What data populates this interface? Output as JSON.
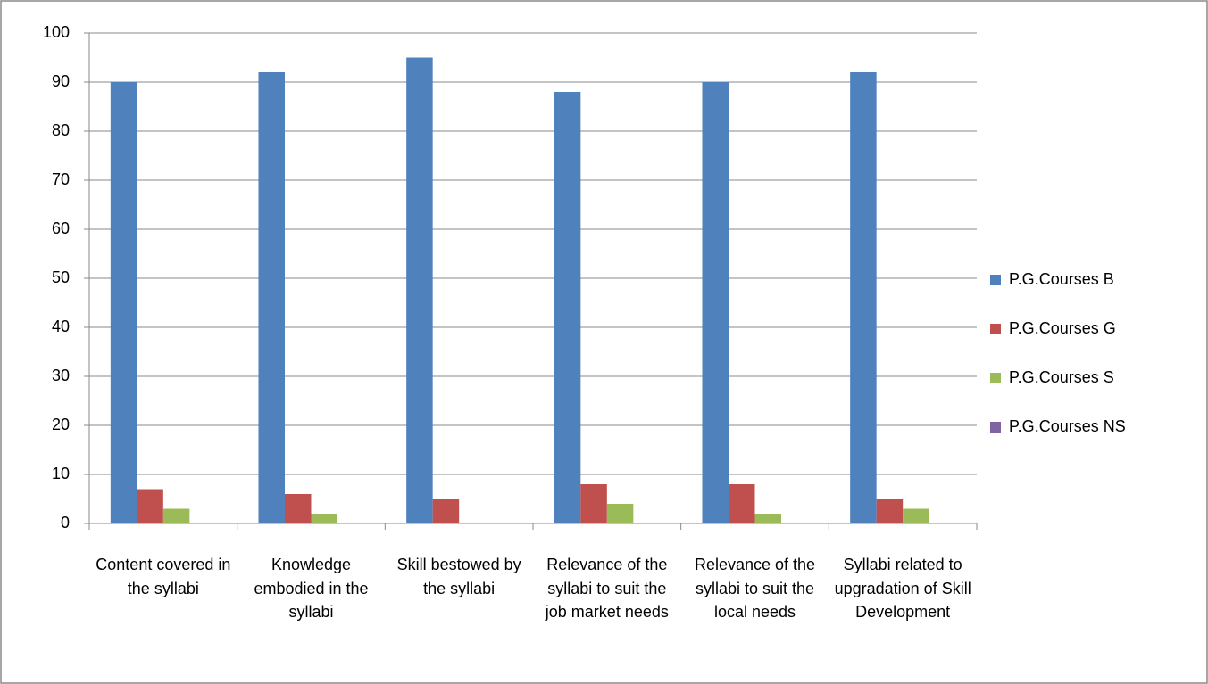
{
  "chart_data": {
    "type": "bar",
    "categories": [
      "Content covered in the syllabi",
      "Knowledge embodied in the syllabi",
      "Skill bestowed by the syllabi",
      "Relevance of the syllabi to suit the job market needs",
      "Relevance of the syllabi to suit the local needs",
      "Syllabi related to upgradation of Skill Development"
    ],
    "series": [
      {
        "name": "P.G.Courses B",
        "color": "#4f81bd",
        "values": [
          90,
          92,
          95,
          88,
          90,
          92
        ]
      },
      {
        "name": "P.G.Courses G",
        "color": "#c0504d",
        "values": [
          7,
          6,
          5,
          8,
          8,
          5
        ]
      },
      {
        "name": "P.G.Courses S",
        "color": "#9bbb59",
        "values": [
          3,
          2,
          0,
          4,
          2,
          3
        ]
      },
      {
        "name": "P.G.Courses NS",
        "color": "#8064a2",
        "values": [
          0,
          0,
          0,
          0,
          0,
          0
        ]
      }
    ],
    "ylim": [
      0,
      100
    ],
    "yticks": [
      0,
      10,
      20,
      30,
      40,
      50,
      60,
      70,
      80,
      90,
      100
    ],
    "grid": true,
    "legend": "right"
  }
}
